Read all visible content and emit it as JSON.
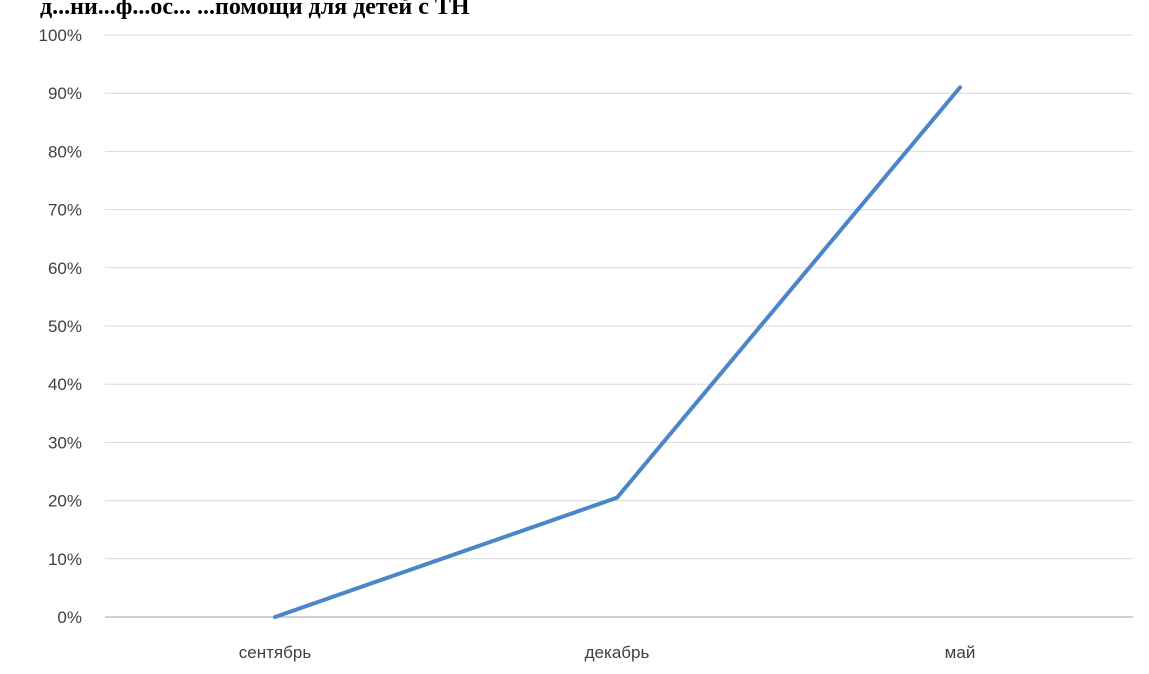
{
  "page": {
    "title_fragment": "д...ни...ф...ос... ...помощи для детей с ТН"
  },
  "chart_data": {
    "type": "line",
    "categories": [
      "сентябрь",
      "декабрь",
      "май"
    ],
    "series": [
      {
        "values": [
          0,
          0.205,
          0.91
        ],
        "color": "#4a86c8"
      }
    ],
    "ylim": [
      0,
      1
    ],
    "yticks": [
      0,
      0.1,
      0.2,
      0.3,
      0.4,
      0.5,
      0.6,
      0.7,
      0.8,
      0.9,
      1.0
    ],
    "ytick_labels": [
      "0%",
      "10%",
      "20%",
      "30%",
      "40%",
      "50%",
      "60%",
      "70%",
      "80%",
      "90%",
      "100%"
    ],
    "grid": true,
    "grid_color": "#d9d9d9",
    "axis_color": "#bfbfbf",
    "title": "",
    "xlabel": "",
    "ylabel": ""
  }
}
